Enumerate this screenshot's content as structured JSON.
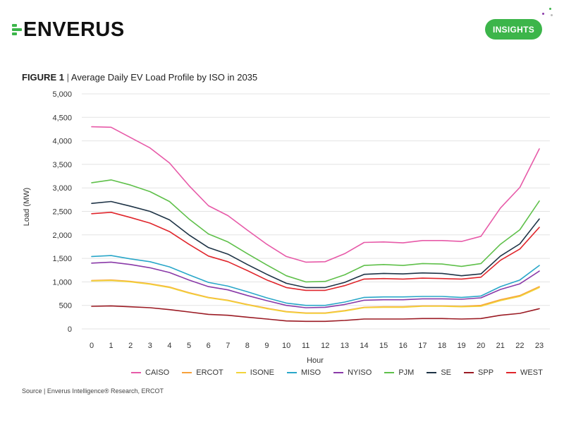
{
  "header": {
    "logo_text": "ENVERUS",
    "badge_label": "INSIGHTS",
    "brand_color": "#3cb54a"
  },
  "figure": {
    "label": "FIGURE 1",
    "separator": "|",
    "title": "Average Daily EV Load Profile by ISO in 2035"
  },
  "source": "Source | Enverus Intelligence® Research, ERCOT",
  "chart_data": {
    "type": "line",
    "xlabel": "Hour",
    "ylabel": "Load (MW)",
    "ylim": [
      0,
      5000
    ],
    "yticks": [
      0,
      500,
      1000,
      1500,
      2000,
      2500,
      3000,
      3500,
      4000,
      4500,
      5000
    ],
    "ytick_labels": [
      "0",
      "500",
      "1,000",
      "1,500",
      "2,000",
      "2,500",
      "3,000",
      "3,500",
      "4,000",
      "4,500",
      "5,000"
    ],
    "x": [
      "0",
      "1",
      "2",
      "3",
      "4",
      "5",
      "6",
      "7",
      "8",
      "9",
      "10",
      "11",
      "12",
      "13",
      "14",
      "15",
      "16",
      "17",
      "18",
      "19",
      "20",
      "21",
      "22",
      "23"
    ],
    "grid": "horizontal",
    "legend": "bottom",
    "series": [
      {
        "name": "CAISO",
        "color": "#e75aa8",
        "values": [
          4300,
          4290,
          4070,
          3850,
          3530,
          3050,
          2620,
          2410,
          2100,
          1800,
          1540,
          1420,
          1430,
          1600,
          1840,
          1850,
          1830,
          1880,
          1880,
          1860,
          1970,
          2570,
          3010,
          3830
        ]
      },
      {
        "name": "ERCOT",
        "color": "#f7a13b",
        "values": [
          1030,
          1040,
          1010,
          960,
          890,
          770,
          670,
          610,
          520,
          440,
          370,
          340,
          340,
          390,
          460,
          470,
          470,
          490,
          490,
          480,
          500,
          620,
          710,
          900
        ]
      },
      {
        "name": "ISONE",
        "color": "#f2d43b",
        "values": [
          1020,
          1030,
          1000,
          950,
          880,
          760,
          660,
          600,
          510,
          430,
          360,
          330,
          330,
          380,
          450,
          460,
          460,
          480,
          480,
          470,
          480,
          600,
          690,
          880
        ]
      },
      {
        "name": "MISO",
        "color": "#2aa7c9",
        "values": [
          1540,
          1560,
          1490,
          1430,
          1320,
          1150,
          990,
          910,
          790,
          660,
          550,
          500,
          500,
          570,
          670,
          680,
          680,
          690,
          690,
          670,
          700,
          900,
          1040,
          1350
        ]
      },
      {
        "name": "NYISO",
        "color": "#8a3aa8",
        "values": [
          1400,
          1420,
          1370,
          1300,
          1200,
          1040,
          900,
          830,
          710,
          600,
          500,
          450,
          460,
          520,
          610,
          620,
          620,
          640,
          640,
          630,
          660,
          840,
          960,
          1230
        ]
      },
      {
        "name": "PJM",
        "color": "#5fc04a",
        "values": [
          3110,
          3170,
          3060,
          2920,
          2710,
          2340,
          2020,
          1850,
          1600,
          1360,
          1130,
          1000,
          1010,
          1150,
          1350,
          1370,
          1350,
          1390,
          1380,
          1330,
          1390,
          1800,
          2110,
          2720
        ]
      },
      {
        "name": "SE",
        "color": "#1e3346",
        "values": [
          2670,
          2710,
          2610,
          2500,
          2320,
          2000,
          1730,
          1590,
          1370,
          1160,
          970,
          880,
          880,
          990,
          1160,
          1180,
          1170,
          1190,
          1180,
          1130,
          1170,
          1550,
          1810,
          2340
        ]
      },
      {
        "name": "SPP",
        "color": "#9b1b24",
        "values": [
          480,
          490,
          470,
          450,
          410,
          360,
          310,
          290,
          250,
          210,
          170,
          160,
          160,
          180,
          210,
          210,
          210,
          220,
          220,
          210,
          220,
          290,
          330,
          430
        ]
      },
      {
        "name": "WEST",
        "color": "#e0262c",
        "values": [
          2450,
          2480,
          2370,
          2250,
          2070,
          1800,
          1550,
          1430,
          1240,
          1040,
          880,
          820,
          820,
          920,
          1060,
          1070,
          1060,
          1080,
          1070,
          1060,
          1100,
          1460,
          1700,
          2160
        ]
      }
    ]
  }
}
